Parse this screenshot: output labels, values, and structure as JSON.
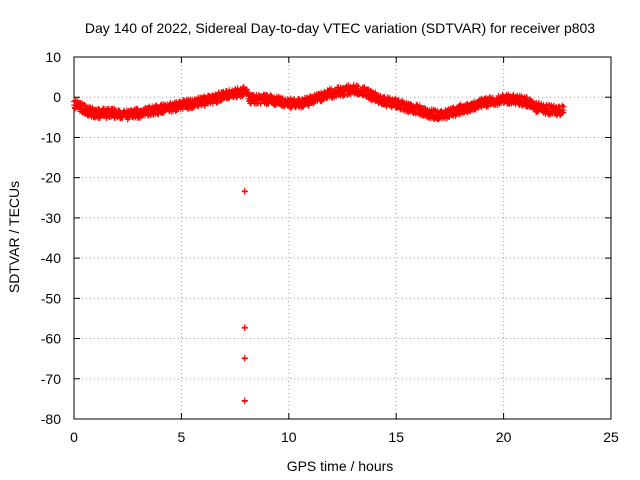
{
  "chart_data": {
    "type": "scatter",
    "title": "Day 140 of 2022, Sidereal Day-to-day VTEC variation (SDTVAR) for receiver p803",
    "xlabel": "GPS time / hours",
    "ylabel": "SDTVAR / TECUs",
    "xlim": [
      0,
      25
    ],
    "ylim": [
      -80,
      10
    ],
    "xticks": [
      0,
      5,
      10,
      15,
      20,
      25
    ],
    "yticks": [
      10,
      0,
      -10,
      -20,
      -30,
      -40,
      -50,
      -60,
      -70,
      -80
    ],
    "xtick_labels": [
      "0",
      "5",
      "10",
      "15",
      "20",
      "25"
    ],
    "ytick_labels": [
      "10",
      "0",
      "-10",
      "-20",
      "-30",
      "-40",
      "-50",
      "-60",
      "-70",
      "-80"
    ],
    "grid": true,
    "marker": "+",
    "series": [
      {
        "name": "SDTVAR",
        "color": "#ff0000",
        "band": {
          "x": [
            0.0,
            0.3,
            0.7,
            1.0,
            1.5,
            2.0,
            2.5,
            3.0,
            3.5,
            4.0,
            4.5,
            5.0,
            5.5,
            6.0,
            6.5,
            7.0,
            7.5,
            8.0,
            8.2,
            8.5,
            9.0,
            9.5,
            10.0,
            10.5,
            11.0,
            11.5,
            12.0,
            12.5,
            13.0,
            13.5,
            14.0,
            14.5,
            15.0,
            15.5,
            16.0,
            16.5,
            17.0,
            17.5,
            18.0,
            18.5,
            19.0,
            19.5,
            20.0,
            20.5,
            21.0,
            21.5,
            22.0,
            22.5,
            22.8
          ],
          "center": [
            -1.5,
            -2.5,
            -3.5,
            -4.0,
            -4.0,
            -4.0,
            -4.5,
            -4.0,
            -3.5,
            -3.0,
            -2.5,
            -2.0,
            -1.5,
            -1.0,
            -0.5,
            0.5,
            1.0,
            1.5,
            -0.5,
            -0.5,
            -0.5,
            -1.0,
            -1.5,
            -1.5,
            -1.0,
            0.0,
            1.0,
            1.5,
            2.0,
            1.5,
            0.0,
            -1.0,
            -1.5,
            -2.5,
            -3.0,
            -4.0,
            -4.5,
            -4.0,
            -3.0,
            -2.5,
            -1.5,
            -1.0,
            -0.5,
            -0.5,
            -1.0,
            -2.5,
            -3.0,
            -3.5,
            -3.0
          ],
          "half_width": 1.2,
          "count": 1800
        },
        "outliers": {
          "x": [
            7.95,
            7.95,
            7.95,
            7.95
          ],
          "y": [
            -23.3,
            -57.2,
            -64.8,
            -75.4
          ]
        }
      }
    ]
  }
}
